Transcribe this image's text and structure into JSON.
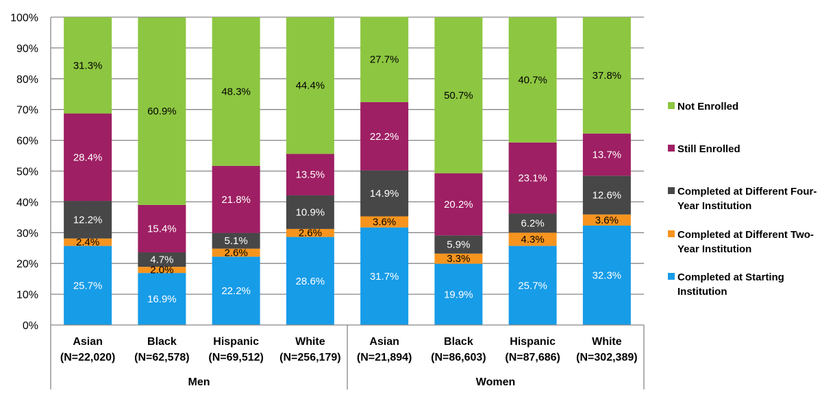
{
  "chart_data": {
    "type": "bar",
    "stacked": true,
    "title": "",
    "xlabel": "",
    "ylabel": "",
    "ylim": [
      0,
      100
    ],
    "yticks": [
      "0%",
      "10%",
      "20%",
      "30%",
      "40%",
      "50%",
      "60%",
      "70%",
      "80%",
      "90%",
      "100%"
    ],
    "grid": true,
    "legend_position": "right",
    "groups": [
      {
        "label": "Men",
        "categories": [
          0,
          1,
          2,
          3
        ]
      },
      {
        "label": "Women",
        "categories": [
          4,
          5,
          6,
          7
        ]
      }
    ],
    "categories": [
      {
        "name": "Asian",
        "n": "(N=22,020)"
      },
      {
        "name": "Black",
        "n": "(N=62,578)"
      },
      {
        "name": "Hispanic",
        "n": "(N=69,512)"
      },
      {
        "name": "White",
        "n": "(N=256,179)"
      },
      {
        "name": "Asian",
        "n": "(N=21,894)"
      },
      {
        "name": "Black",
        "n": "(N=86,603)"
      },
      {
        "name": "Hispanic",
        "n": "(N=87,686)"
      },
      {
        "name": "White",
        "n": "(N=302,389)"
      }
    ],
    "series": [
      {
        "name": "Completed at Starting Institution",
        "color": "#179CE8",
        "label_color": "#ffffff",
        "values": [
          25.7,
          16.9,
          22.2,
          28.6,
          31.7,
          19.9,
          25.7,
          32.3
        ]
      },
      {
        "name": "Completed at Different Two-Year Institution",
        "color": "#F7941E",
        "label_color": "#000000",
        "values": [
          2.4,
          2.0,
          2.6,
          2.6,
          3.6,
          3.3,
          4.3,
          3.6
        ]
      },
      {
        "name": "Completed at Different Four-Year Institution",
        "color": "#474747",
        "label_color": "#ffffff",
        "values": [
          12.2,
          4.7,
          5.1,
          10.9,
          14.9,
          5.9,
          6.2,
          12.6
        ]
      },
      {
        "name": "Still Enrolled",
        "color": "#9E1F63",
        "label_color": "#ffffff",
        "values": [
          28.4,
          15.4,
          21.8,
          13.5,
          22.2,
          20.2,
          23.1,
          13.7
        ]
      },
      {
        "name": "Not Enrolled",
        "color": "#8DC641",
        "label_color": "#000000",
        "values": [
          31.3,
          60.9,
          48.3,
          44.4,
          27.7,
          50.7,
          40.7,
          37.8
        ]
      }
    ],
    "data_labels": [
      [
        "25.7%",
        "16.9%",
        "22.2%",
        "28.6%",
        "31.7%",
        "19.9%",
        "25.7%",
        "32.3%"
      ],
      [
        "2.4%",
        "2.0%",
        "2.6%",
        "2.6%",
        "3.6%",
        "3.3%",
        "4.3%",
        "3.6%"
      ],
      [
        "12.2%",
        "4.7%",
        "5.1%",
        "10.9%",
        "14.9%",
        "5.9%",
        "6.2%",
        "12.6%"
      ],
      [
        "28.4%",
        "15.4%",
        "21.8%",
        "13.5%",
        "22.2%",
        "20.2%",
        "23.1%",
        "13.7%"
      ],
      [
        "31.3%",
        "60.9%",
        "48.3%",
        "44.4%",
        "27.7%",
        "50.7%",
        "40.7%",
        "37.8%"
      ]
    ]
  },
  "legend": {
    "items": [
      {
        "label": "Not Enrolled",
        "color": "#8DC641"
      },
      {
        "label": "Still Enrolled",
        "color": "#9E1F63"
      },
      {
        "label": "Completed at Different Four-Year Institution",
        "color": "#474747"
      },
      {
        "label": "Completed at Different Two-Year Institution",
        "color": "#F7941E"
      },
      {
        "label": "Completed at Starting Institution",
        "color": "#179CE8"
      }
    ]
  }
}
